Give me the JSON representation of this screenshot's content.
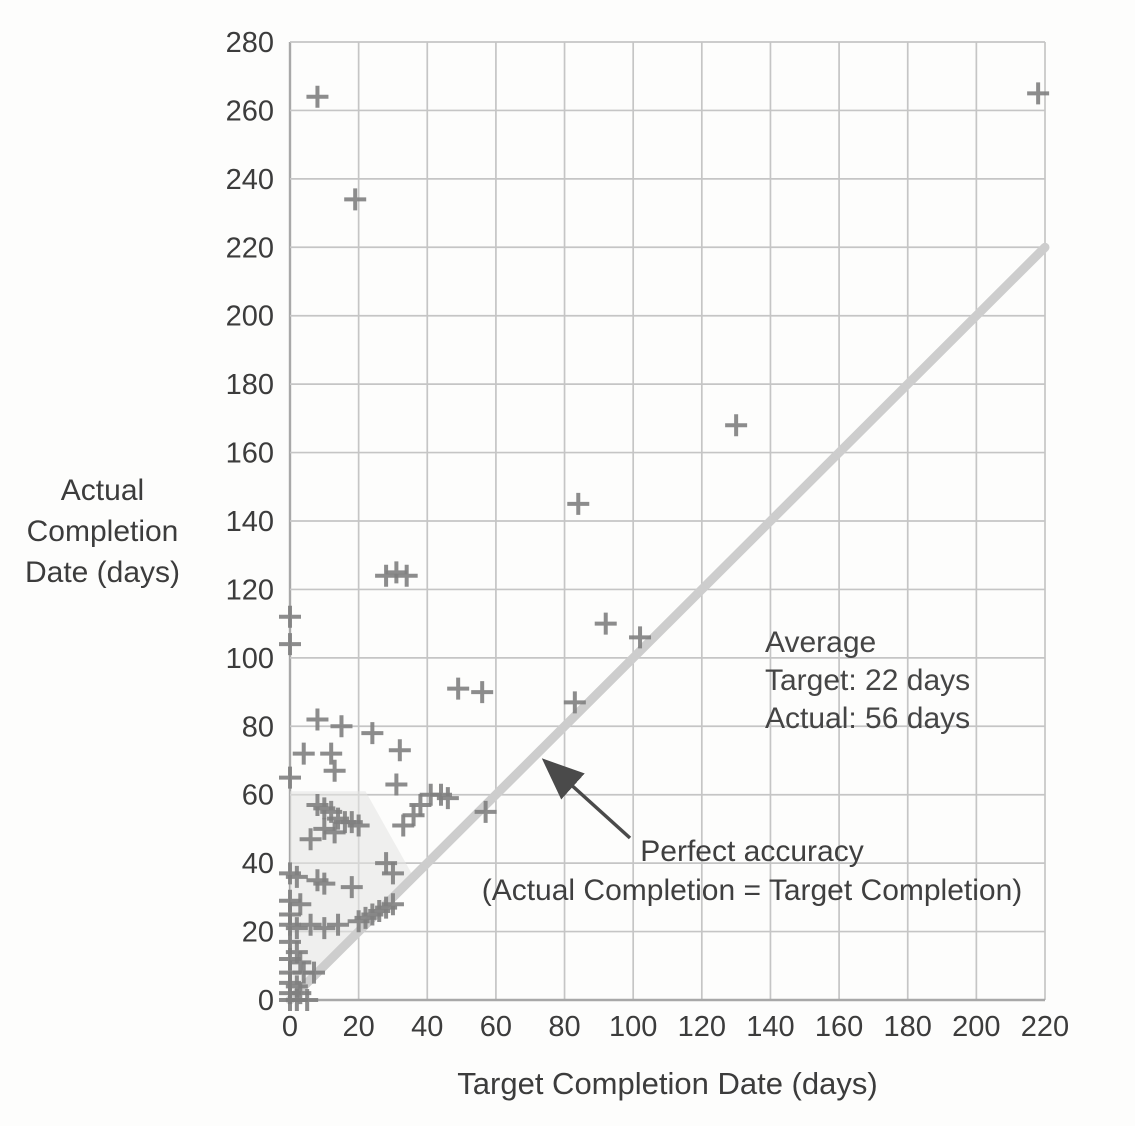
{
  "chart_data": {
    "type": "scatter",
    "title": "",
    "xlabel": "Target Completion Date (days)",
    "ylabel_lines": [
      "Actual",
      "Completion",
      "Date (days)"
    ],
    "xlim": [
      0,
      220
    ],
    "ylim": [
      0,
      280
    ],
    "xticks": [
      0,
      20,
      40,
      60,
      80,
      100,
      120,
      140,
      160,
      180,
      200,
      220
    ],
    "yticks": [
      0,
      20,
      40,
      60,
      80,
      100,
      120,
      140,
      160,
      180,
      200,
      220,
      240,
      260,
      280
    ],
    "grid": true,
    "legend": "none",
    "marker": "plus",
    "marker_color": "#7f7f7f",
    "grid_color": "#c5c5c5",
    "axis_line_color": "#a8a8a8",
    "axis_text_color": "#3c3c3c",
    "identity_line": {
      "from": [
        0,
        0
      ],
      "to": [
        220,
        220
      ],
      "color": "#cdcdcd",
      "label_lines": [
        "Perfect accuracy",
        "(Actual Completion = Target Completion)"
      ]
    },
    "average_annotation": {
      "lines": [
        "Average",
        "Target: 22 days",
        "Actual: 56 days"
      ]
    },
    "points": [
      [
        8,
        264
      ],
      [
        19,
        234
      ],
      [
        218,
        265
      ],
      [
        130,
        168
      ],
      [
        84,
        145
      ],
      [
        28,
        124
      ],
      [
        31,
        125
      ],
      [
        34,
        124
      ],
      [
        92,
        110
      ],
      [
        102,
        106
      ],
      [
        0,
        112
      ],
      [
        0,
        104
      ],
      [
        49,
        91
      ],
      [
        56,
        90
      ],
      [
        83,
        87
      ],
      [
        8,
        82
      ],
      [
        15,
        80
      ],
      [
        24,
        78
      ],
      [
        4,
        72
      ],
      [
        12,
        72
      ],
      [
        32,
        73
      ],
      [
        13,
        67
      ],
      [
        0,
        65
      ],
      [
        31,
        63
      ],
      [
        41,
        60
      ],
      [
        44,
        60
      ],
      [
        46,
        59
      ],
      [
        57,
        55
      ],
      [
        36,
        54
      ],
      [
        38,
        57
      ],
      [
        8,
        57
      ],
      [
        10,
        56
      ],
      [
        12,
        55
      ],
      [
        14,
        53
      ],
      [
        16,
        52
      ],
      [
        10,
        50
      ],
      [
        13,
        49
      ],
      [
        18,
        52
      ],
      [
        20,
        51
      ],
      [
        6,
        47
      ],
      [
        33,
        51
      ],
      [
        0,
        37
      ],
      [
        2,
        36
      ],
      [
        8,
        35
      ],
      [
        10,
        34
      ],
      [
        18,
        33
      ],
      [
        28,
        40
      ],
      [
        30,
        37
      ],
      [
        0,
        29
      ],
      [
        3,
        28
      ],
      [
        0,
        25
      ],
      [
        0,
        22
      ],
      [
        2,
        21
      ],
      [
        6,
        22
      ],
      [
        10,
        21
      ],
      [
        14,
        22
      ],
      [
        20,
        23
      ],
      [
        22,
        24
      ],
      [
        24,
        25
      ],
      [
        26,
        26
      ],
      [
        28,
        27
      ],
      [
        30,
        28
      ],
      [
        0,
        17
      ],
      [
        2,
        14
      ],
      [
        0,
        12
      ],
      [
        3,
        11
      ],
      [
        0,
        8
      ],
      [
        4,
        8
      ],
      [
        7,
        8
      ],
      [
        0,
        5
      ],
      [
        2,
        4
      ],
      [
        0,
        2
      ],
      [
        3,
        2
      ],
      [
        0,
        0
      ],
      [
        2,
        0
      ],
      [
        5,
        0
      ]
    ]
  }
}
